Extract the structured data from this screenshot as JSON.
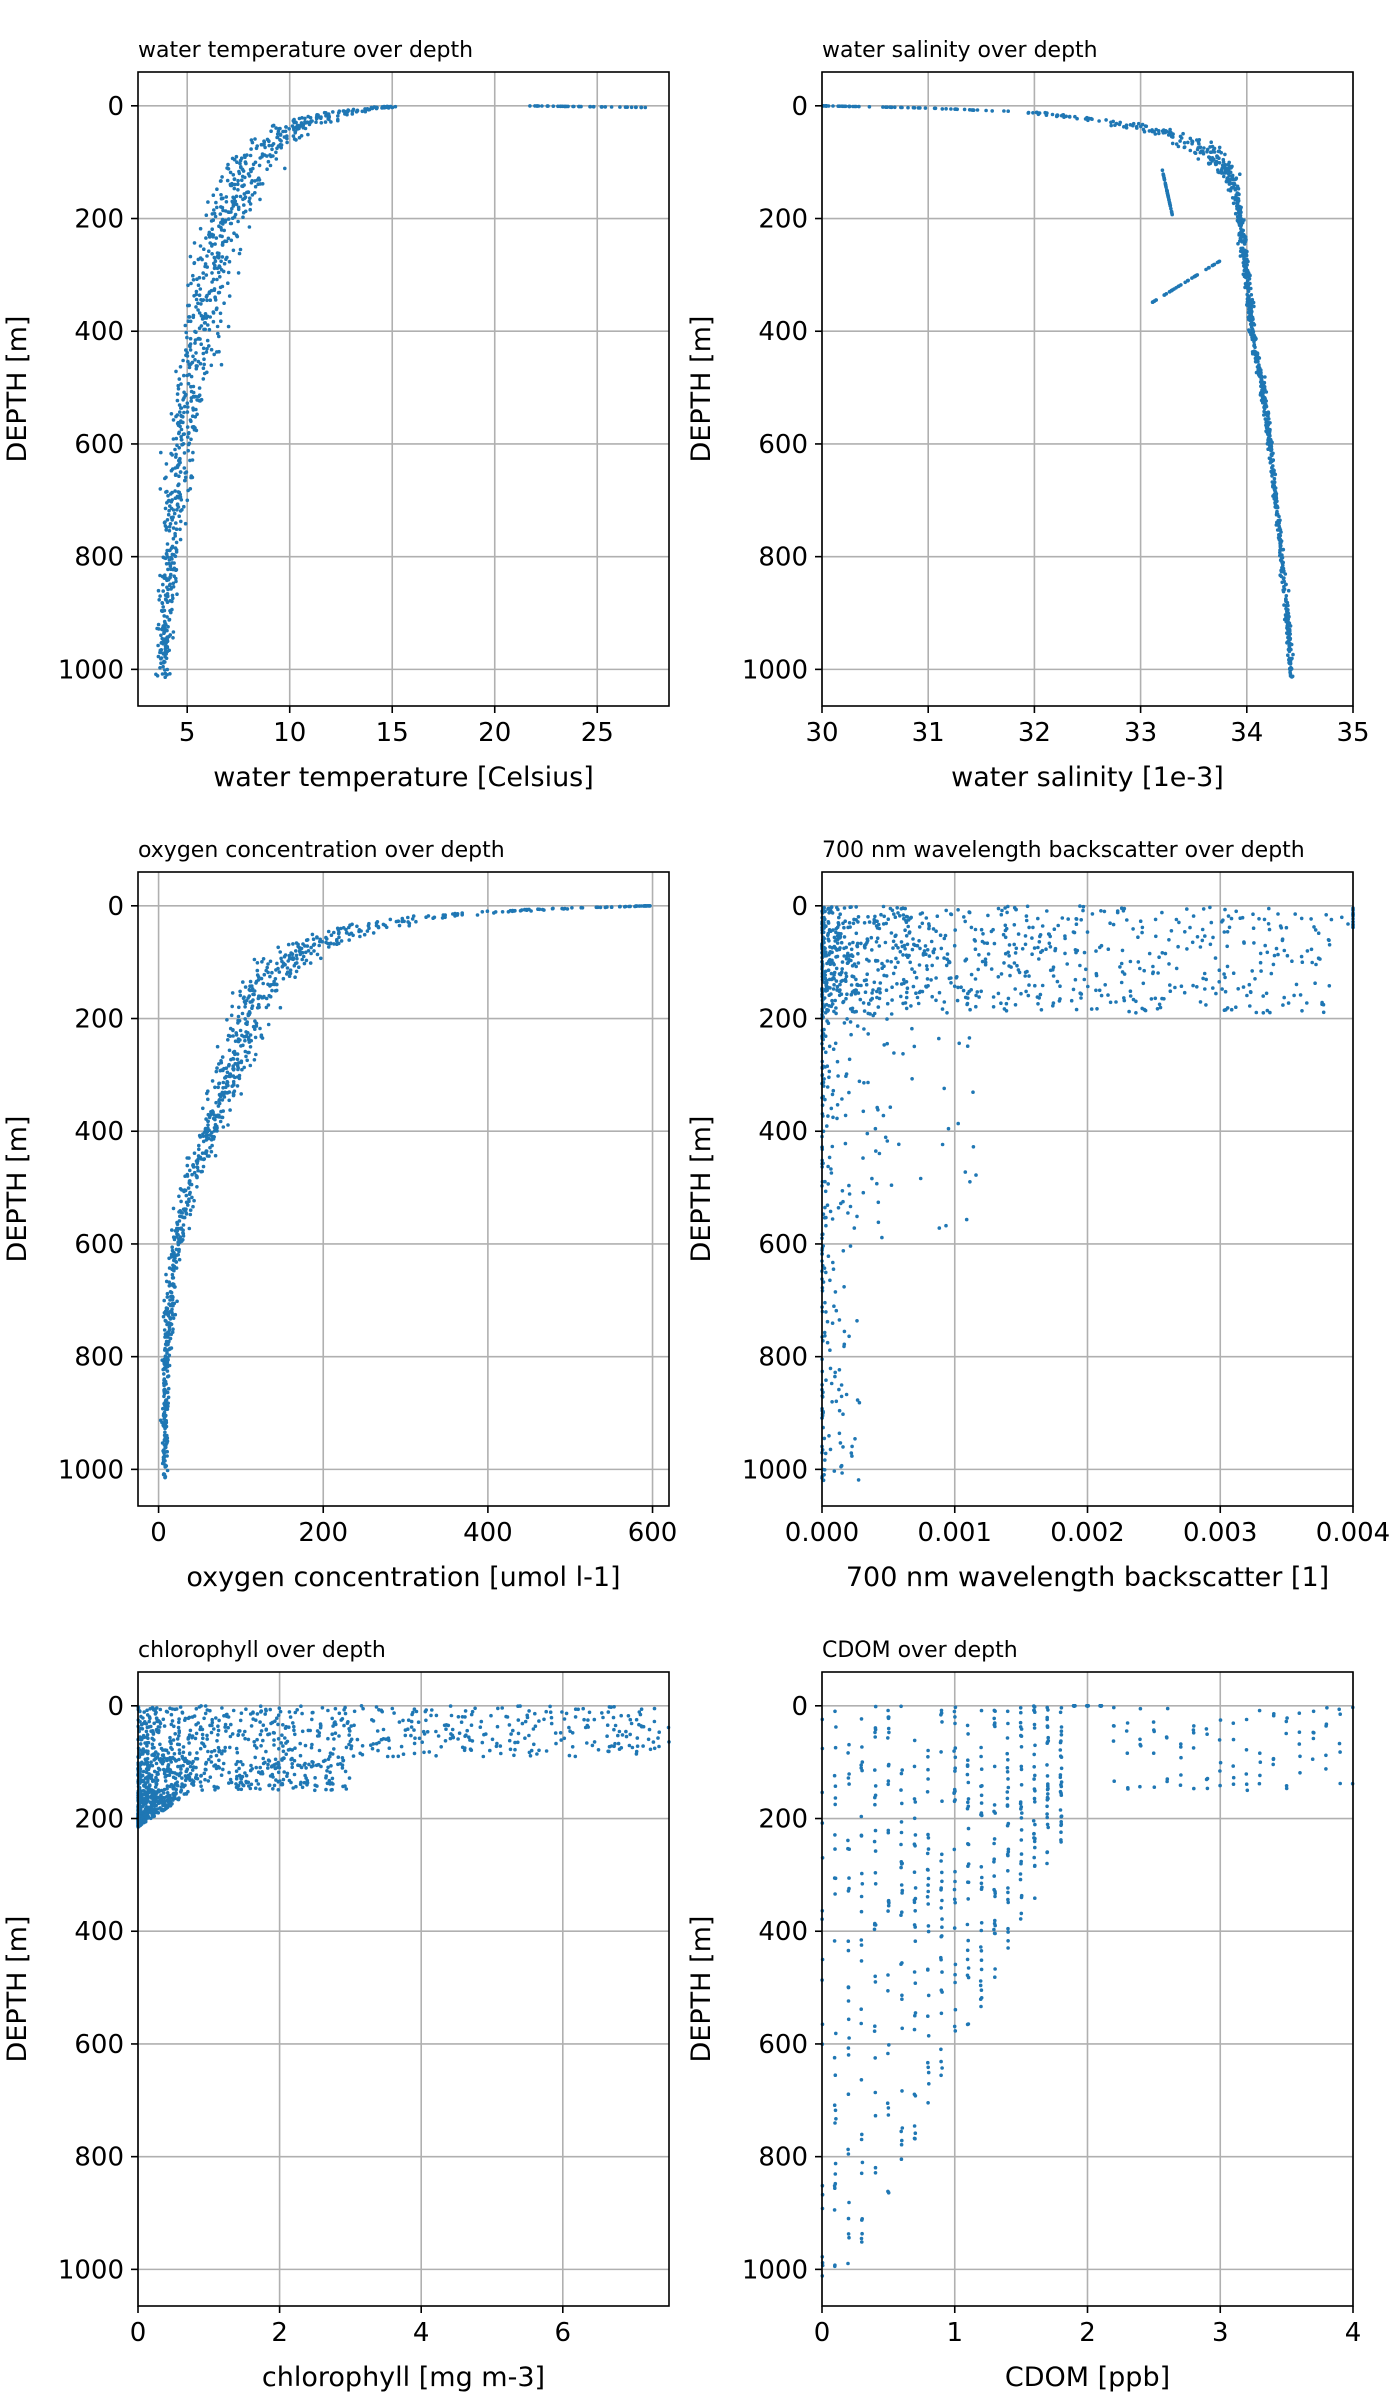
{
  "colors": {
    "series": "#1f77b4",
    "grid": "#b0b0b0"
  },
  "chart_data": [
    {
      "type": "scatter",
      "title": "water temperature over depth",
      "xlabel": "water temperature [Celsius]",
      "ylabel": "DEPTH [m]",
      "xlim": [
        2.6,
        28.5
      ],
      "ylim": [
        1065,
        -60
      ],
      "xticks": [
        5,
        10,
        15,
        20,
        25
      ],
      "yticks": [
        0,
        200,
        400,
        600,
        800,
        1000
      ],
      "grid": true,
      "profile": [
        [
          3.8,
          1015
        ],
        [
          3.9,
          950
        ],
        [
          4.1,
          850
        ],
        [
          4.3,
          750
        ],
        [
          4.6,
          650
        ],
        [
          5.0,
          550
        ],
        [
          5.4,
          450
        ],
        [
          5.9,
          350
        ],
        [
          6.5,
          250
        ],
        [
          7.0,
          180
        ],
        [
          7.6,
          130
        ],
        [
          8.4,
          90
        ],
        [
          9.5,
          55
        ],
        [
          11.0,
          25
        ],
        [
          13.0,
          8
        ],
        [
          15.0,
          1
        ]
      ],
      "spread": [
        0.45,
        0.6,
        0.7,
        0.8,
        1.0,
        1.2,
        1.5,
        1.8,
        2.0,
        2.0,
        2.0,
        2.0,
        2.2,
        2.0,
        1.4,
        0.6
      ],
      "extra": [
        {
          "x": [
            21.5,
            27.5
          ],
          "y": [
            0,
            3
          ]
        }
      ]
    },
    {
      "type": "scatter",
      "title": "water salinity over depth",
      "xlabel": "water salinity [1e-3]",
      "ylabel": "DEPTH [m]",
      "xlim": [
        30,
        35
      ],
      "ylim": [
        1065,
        -60
      ],
      "xticks": [
        30,
        31,
        32,
        33,
        34,
        35
      ],
      "yticks": [
        0,
        200,
        400,
        600,
        800,
        1000
      ],
      "grid": true,
      "profile": [
        [
          30.0,
          0
        ],
        [
          31.0,
          4
        ],
        [
          32.0,
          12
        ],
        [
          32.8,
          30
        ],
        [
          33.3,
          50
        ],
        [
          33.6,
          75
        ],
        [
          33.8,
          110
        ],
        [
          33.9,
          160
        ],
        [
          33.95,
          220
        ],
        [
          34.0,
          300
        ],
        [
          34.05,
          400
        ],
        [
          34.15,
          500
        ],
        [
          34.22,
          600
        ],
        [
          34.3,
          750
        ],
        [
          34.38,
          900
        ],
        [
          34.42,
          1015
        ]
      ],
      "spread": [
        0.03,
        0.08,
        0.18,
        0.3,
        0.35,
        0.3,
        0.15,
        0.06,
        0.05,
        0.05,
        0.05,
        0.05,
        0.04,
        0.04,
        0.04,
        0.03
      ],
      "extra": [
        {
          "x": [
            33.1,
            33.75
          ],
          "y": [
            350,
            275
          ]
        },
        {
          "x": [
            33.2,
            33.3
          ],
          "y": [
            110,
            195
          ]
        }
      ]
    },
    {
      "type": "scatter",
      "title": "oxygen concentration over depth",
      "xlabel": "oxygen concentration [umol l-1]",
      "ylabel": "DEPTH [m]",
      "xlim": [
        -25,
        620
      ],
      "ylim": [
        1065,
        -60
      ],
      "xticks": [
        0,
        200,
        400,
        600
      ],
      "yticks": [
        0,
        200,
        400,
        600,
        800,
        1000
      ],
      "grid": true,
      "profile": [
        [
          8,
          1015
        ],
        [
          8,
          900
        ],
        [
          10,
          800
        ],
        [
          14,
          700
        ],
        [
          22,
          600
        ],
        [
          38,
          500
        ],
        [
          55,
          430
        ],
        [
          75,
          350
        ],
        [
          95,
          270
        ],
        [
          110,
          200
        ],
        [
          130,
          130
        ],
        [
          170,
          80
        ],
        [
          230,
          45
        ],
        [
          320,
          20
        ],
        [
          460,
          6
        ],
        [
          595,
          0
        ]
      ],
      "spread": [
        5,
        6,
        7,
        10,
        14,
        18,
        22,
        28,
        35,
        45,
        55,
        60,
        70,
        60,
        40,
        10
      ],
      "extra": []
    },
    {
      "type": "scatter",
      "title": "700 nm wavelength backscatter over depth",
      "xlabel": "700 nm wavelength backscatter [1]",
      "ylabel": "DEPTH [m]",
      "xlim": [
        0,
        0.004
      ],
      "ylim": [
        1065,
        -60
      ],
      "xticks": [
        0.0,
        0.001,
        0.002,
        0.003,
        0.004
      ],
      "xtick_labels": [
        "0.000",
        "0.001",
        "0.002",
        "0.003",
        "0.004"
      ],
      "yticks": [
        0,
        200,
        400,
        600,
        800,
        1000
      ],
      "grid": true,
      "profile": [],
      "spread": [],
      "extra": []
    },
    {
      "type": "scatter",
      "title": "chlorophyll over depth",
      "xlabel": "chlorophyll [mg m-3]",
      "ylabel": "DEPTH [m]",
      "xlim": [
        0,
        7.5
      ],
      "ylim": [
        1065,
        -60
      ],
      "xticks": [
        0,
        2,
        4,
        6
      ],
      "yticks": [
        0,
        200,
        400,
        600,
        800,
        1000
      ],
      "grid": true,
      "profile": [],
      "spread": [],
      "extra": []
    },
    {
      "type": "scatter",
      "title": "CDOM over depth",
      "xlabel": "CDOM [ppb]",
      "ylabel": "DEPTH [m]",
      "xlim": [
        0,
        4
      ],
      "ylim": [
        1065,
        -60
      ],
      "xticks": [
        0,
        1,
        2,
        3,
        4
      ],
      "yticks": [
        0,
        200,
        400,
        600,
        800,
        1000
      ],
      "grid": true,
      "profile": [],
      "spread": [],
      "extra": []
    }
  ]
}
